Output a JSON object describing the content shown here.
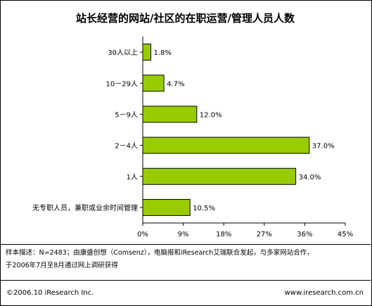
{
  "title": "站长经营的网站/社区的在职运营/管理人员人数",
  "footnote_line1": "样本描述：N=2483；由康盛创想（Comsenz），电脑报和iResearch艾瑞联合发起，与多家网站合作，",
  "footnote_line2": "于2006年7月至8月通过网上调研获得",
  "copyright": "©2006.10 iResearch Inc.",
  "url": "www.iresearch.com.cn",
  "colors": {
    "bar": "#99CC00",
    "bar_stroke": "#000000",
    "axis": "#000000"
  },
  "chart_data": {
    "type": "bar",
    "orientation": "horizontal",
    "categories": [
      "30人以上",
      "10－29人",
      "5－9人",
      "2－4人",
      "1人",
      "无专职人员，兼职或业余时间管理"
    ],
    "values": [
      1.8,
      4.7,
      12.0,
      37.0,
      34.0,
      10.5
    ],
    "value_labels": [
      "1.8%",
      "4.7%",
      "12.0%",
      "37.0%",
      "34.0%",
      "10.5%"
    ],
    "x_ticks": [
      0,
      9,
      18,
      27,
      36,
      45
    ],
    "x_tick_labels": [
      "0%",
      "9%",
      "18%",
      "27%",
      "36%",
      "45%"
    ],
    "xlim": [
      0,
      45
    ],
    "grid": false,
    "legend": "none"
  }
}
